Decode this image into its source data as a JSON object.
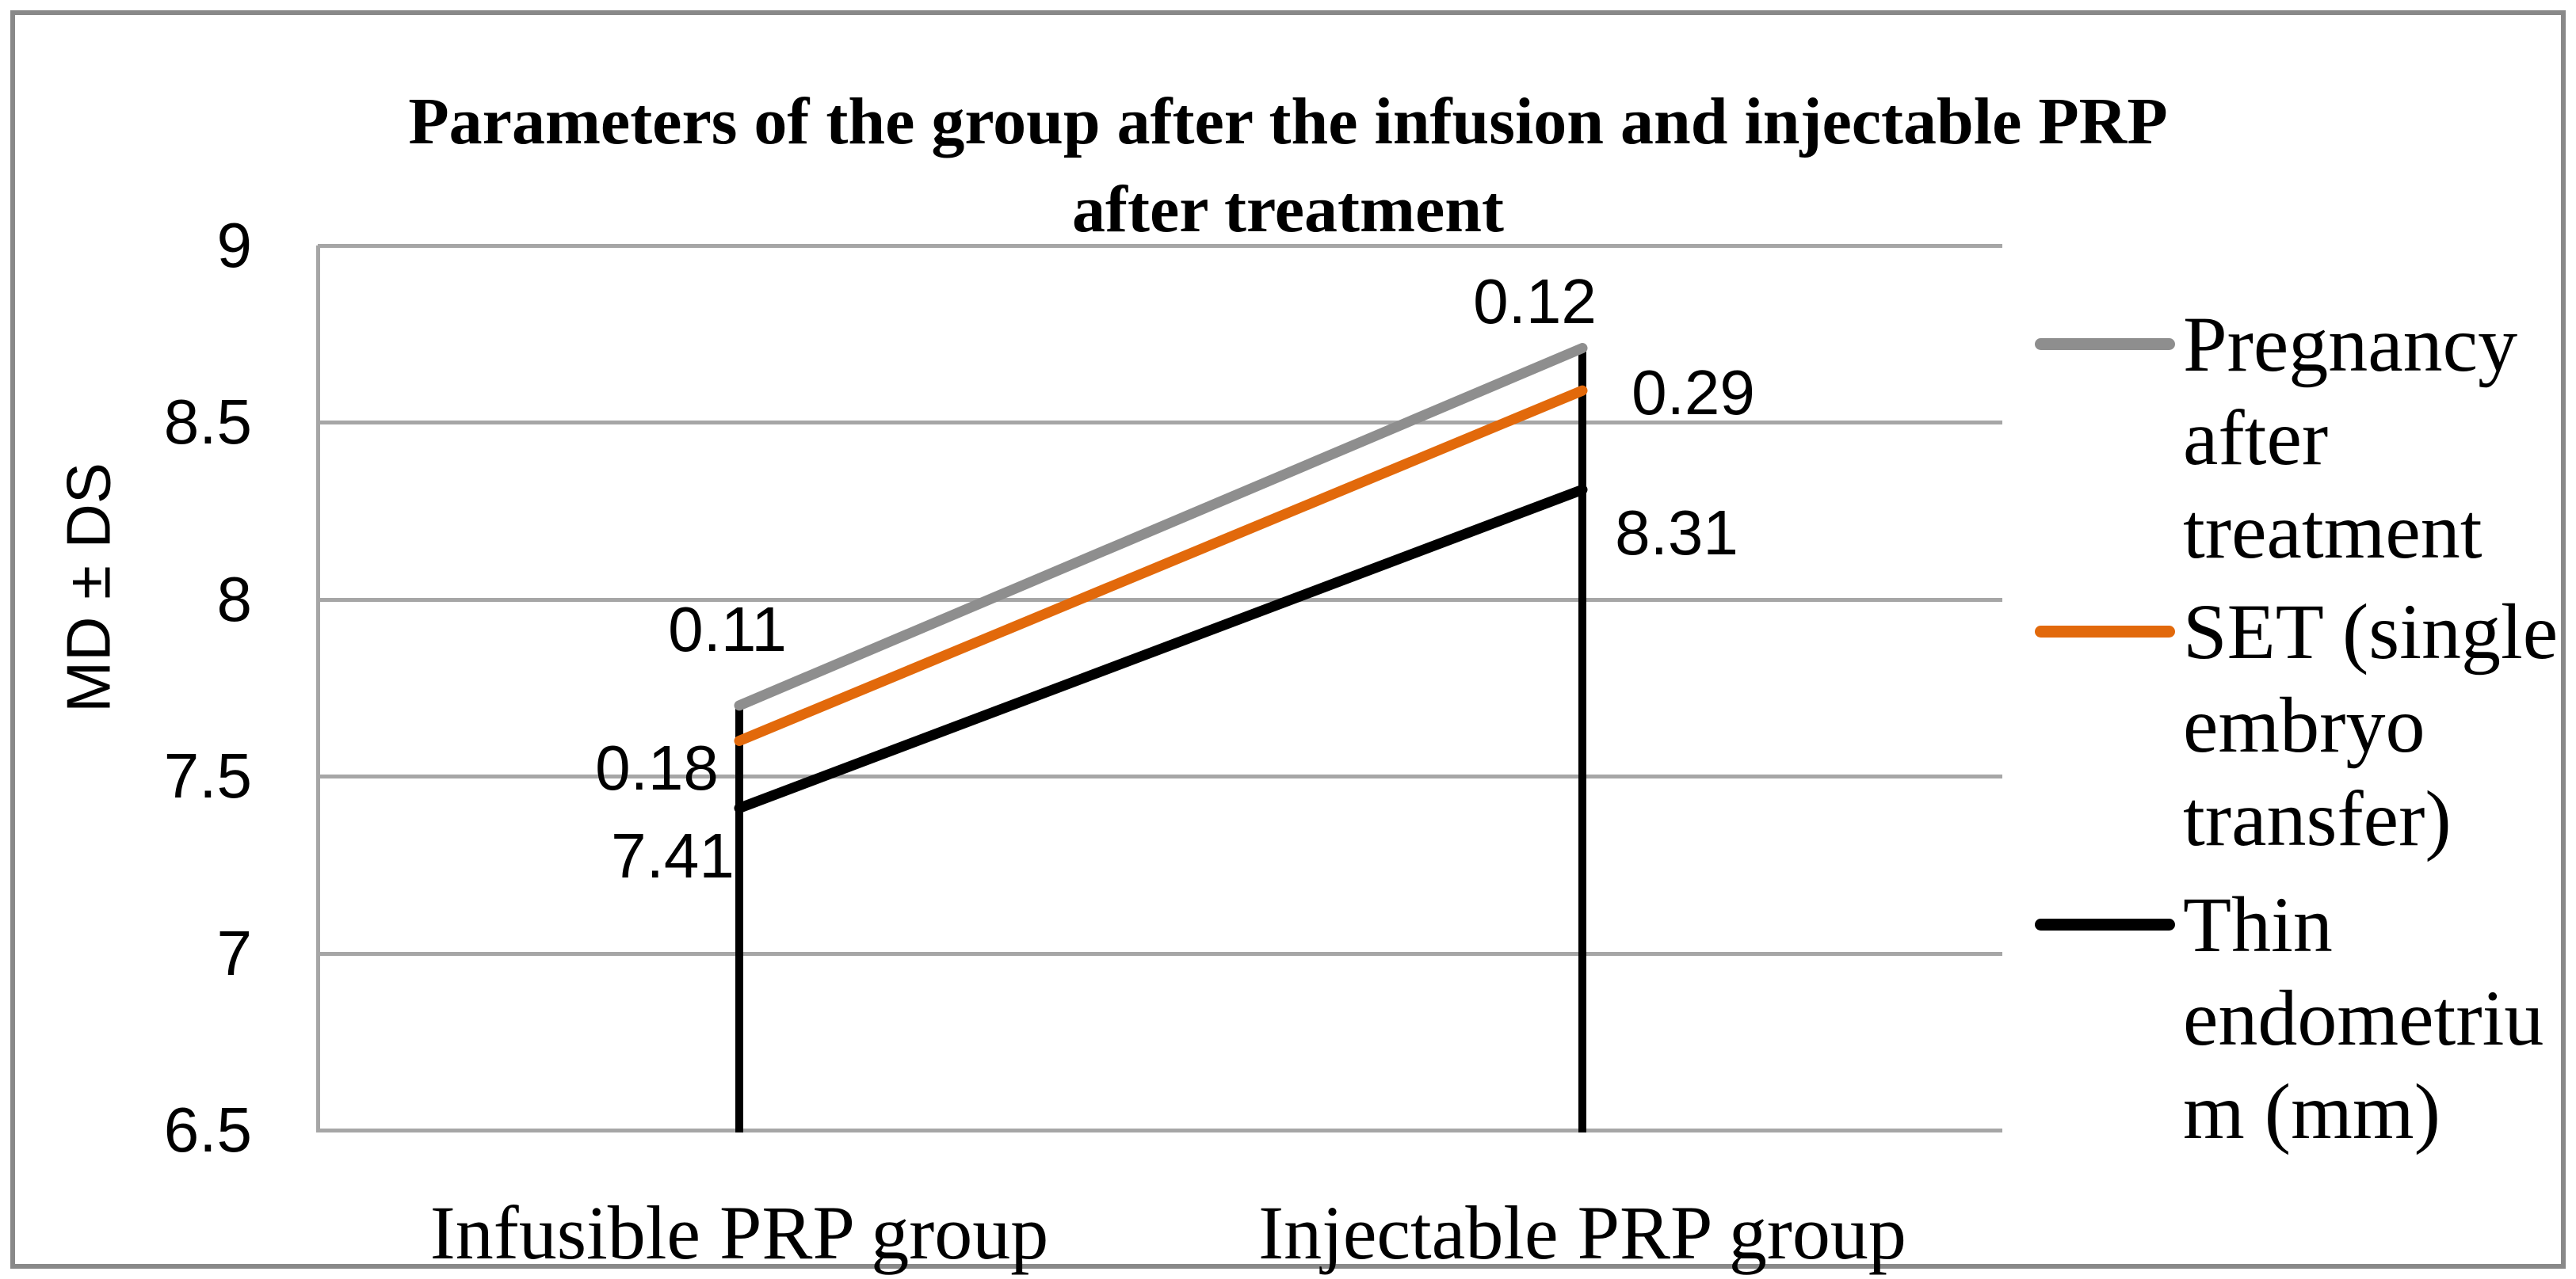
{
  "title": {
    "text": "Parameters of the group after the infusion and injectable PRP after treatment",
    "lines": [
      "Parameters of the group after the infusion and injectable PRP",
      "after treatment"
    ]
  },
  "y_axis": {
    "title": "MD ± DS",
    "tick_labels": [
      "9",
      "8.5",
      "8",
      "7.5",
      "7",
      "6.5"
    ],
    "tick_values": [
      9,
      8.5,
      8,
      7.5,
      7,
      6.5
    ],
    "min": 6.5,
    "max": 9
  },
  "x_axis": {
    "categories": [
      "Infusible PRP group",
      "Injectable PRP group"
    ]
  },
  "legend": {
    "position": "right",
    "items": [
      {
        "label": "Pregnancy after treatment",
        "lines": [
          "Pregnancy",
          "after",
          "treatment"
        ],
        "color": "#8E8E8E"
      },
      {
        "label": "SET (single embryo transfer)",
        "lines": [
          "SET (single",
          "embryo",
          "transfer)"
        ],
        "color": "#E2690B"
      },
      {
        "label": "Thin endometrium (mm)",
        "lines": [
          "Thin",
          "endometriu",
          "m (mm)"
        ],
        "color": "#000000"
      }
    ]
  },
  "colors": {
    "gridline": "#A6A6A6",
    "axis_line": "#A6A6A6",
    "frame_border": "#898989",
    "series_gray": "#8E8E8E",
    "series_orange": "#E2690B",
    "series_black": "#000000",
    "drop_line": "#000000"
  },
  "chart_data": {
    "type": "line",
    "title": "Parameters of the group after the infusion and injectable PRP after treatment",
    "ylabel": "MD ± DS",
    "xlabel": "",
    "ylim": [
      6.5,
      9
    ],
    "y_ticks": [
      9,
      8.5,
      8,
      7.5,
      7,
      6.5
    ],
    "grid": true,
    "legend_position": "right",
    "drop_lines": true,
    "categories": [
      "Infusible PRP group",
      "Injectable PRP group"
    ],
    "series": [
      {
        "name": "Pregnancy after treatment",
        "color": "#8E8E8E",
        "values_plotted": [
          7.7,
          8.71
        ],
        "data_labels": [
          "0.11",
          "0.12"
        ]
      },
      {
        "name": "SET (single embryo transfer)",
        "color": "#E2690B",
        "values_plotted": [
          7.6,
          8.59
        ],
        "data_labels": [
          "0.18",
          "0.29"
        ]
      },
      {
        "name": "Thin endometrium (mm)",
        "color": "#000000",
        "values_plotted": [
          7.41,
          8.31
        ],
        "data_labels": [
          "7.41",
          "8.31"
        ]
      }
    ]
  }
}
